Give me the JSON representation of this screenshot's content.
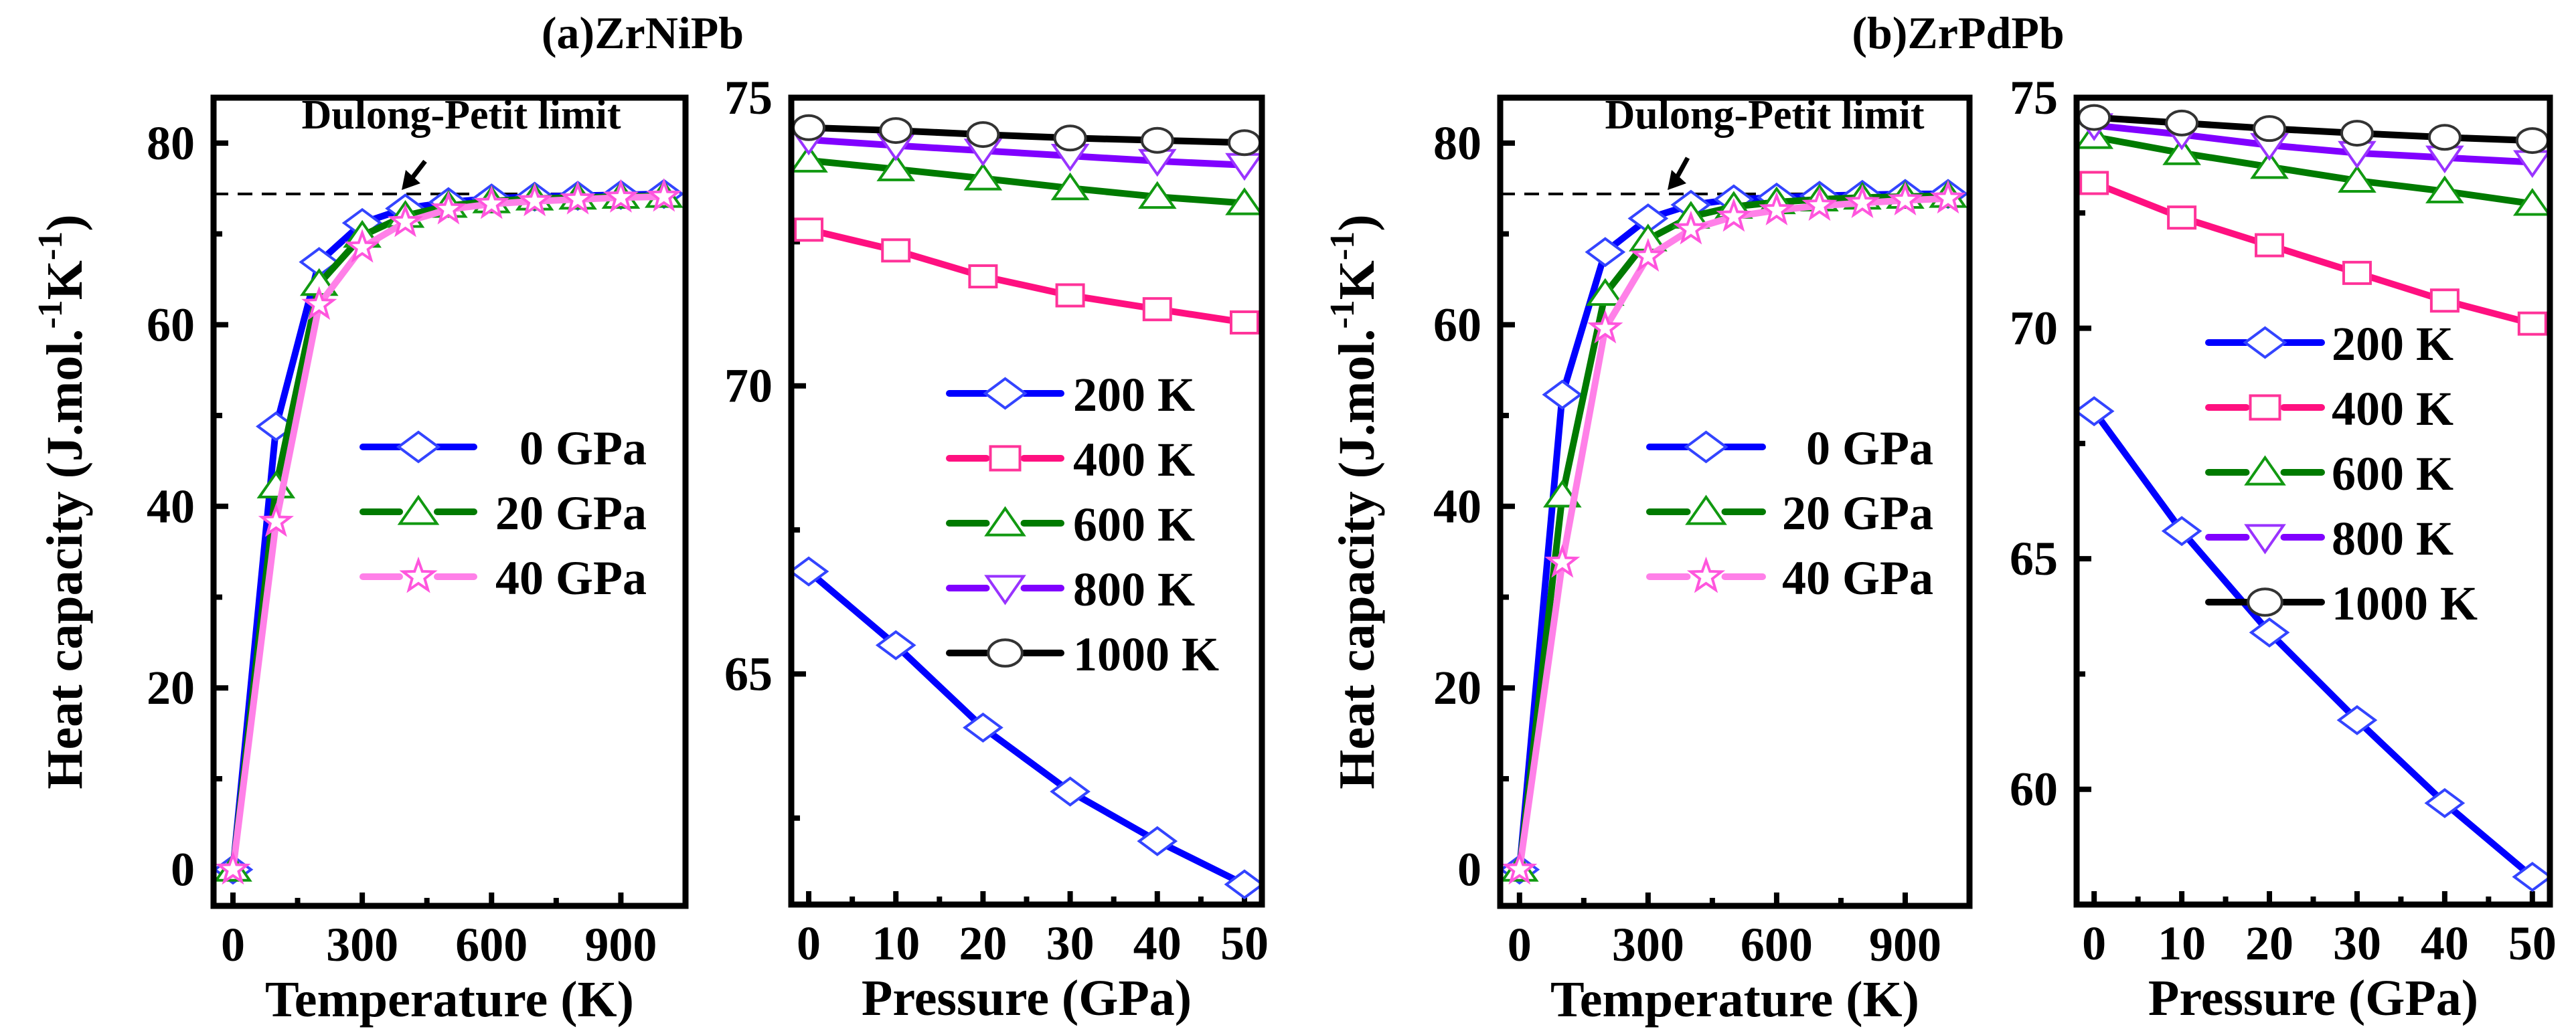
{
  "figure_titles": [
    "(a)ZrNiPb",
    "(b)ZrPdPb"
  ],
  "chart_data": [
    {
      "type": "line",
      "panel": "(a)ZrNiPb",
      "xlabel": "Temperature (K)",
      "ylabel": {
        "main": "Heat capacity (J.mol.",
        "sup1": "-1",
        "mid": "K",
        "sup2": "-1",
        "end": ")"
      },
      "xlim": [
        -45,
        1050
      ],
      "ylim": [
        -4,
        85
      ],
      "xticks": [
        0,
        300,
        600,
        900
      ],
      "xminor": 150,
      "yticks": [
        0,
        20,
        40,
        60,
        80
      ],
      "yminor": 10,
      "annotation": {
        "text": "Dulong-Petit limit",
        "value": 74.4
      },
      "x": [
        0,
        100,
        200,
        300,
        400,
        500,
        600,
        700,
        800,
        900,
        1000
      ],
      "series": [
        {
          "name": "0 GPa",
          "color": "#0000ff",
          "marker_color": "#3344ff",
          "marker": "diamond",
          "values": [
            0,
            48.8,
            66.9,
            71.2,
            72.8,
            73.5,
            73.9,
            74.1,
            74.2,
            74.3,
            74.4
          ]
        },
        {
          "name": "20 GPa",
          "color": "#007a00",
          "marker_color": "#119911",
          "marker": "triangle",
          "values": [
            0,
            42.2,
            64.5,
            69.8,
            72.0,
            73.1,
            73.6,
            73.9,
            74.0,
            74.1,
            74.2
          ]
        },
        {
          "name": "40 GPa",
          "color": "#ff80e8",
          "marker_color": "#ff55dd",
          "marker": "star",
          "values": [
            0,
            38.3,
            62.2,
            68.5,
            71.3,
            72.7,
            73.3,
            73.6,
            73.8,
            74.0,
            74.1
          ]
        }
      ]
    },
    {
      "type": "line",
      "panel": "(a)ZrNiPb",
      "xlabel": "Pressure (GPa)",
      "xlim": [
        -2,
        52
      ],
      "ylim": [
        61,
        75
      ],
      "xticks": [
        0,
        10,
        20,
        30,
        40,
        50
      ],
      "xminor": 5,
      "yticks": [
        65,
        70,
        75
      ],
      "yminor": 2.5,
      "x": [
        0,
        10,
        20,
        30,
        40,
        50
      ],
      "series": [
        {
          "name": "200 K",
          "color": "#0000ff",
          "marker_color": "#3344ff",
          "marker": "diamond",
          "values": [
            66.78,
            65.5,
            64.07,
            62.96,
            62.1,
            61.35
          ]
        },
        {
          "name": "400 K",
          "color": "#ff1080",
          "marker_color": "#ff3399",
          "marker": "square",
          "values": [
            72.71,
            72.35,
            71.9,
            71.57,
            71.33,
            71.1
          ]
        },
        {
          "name": "600 K",
          "color": "#007a00",
          "marker_color": "#119911",
          "marker": "triangle",
          "values": [
            73.91,
            73.76,
            73.6,
            73.43,
            73.28,
            73.17
          ]
        },
        {
          "name": "800 K",
          "color": "#8000ff",
          "marker_color": "#9933ff",
          "marker": "triangle-down",
          "values": [
            74.27,
            74.17,
            74.08,
            73.99,
            73.9,
            73.83
          ]
        },
        {
          "name": "1000 K",
          "color": "#000000",
          "marker_color": "#333333",
          "marker": "circle",
          "values": [
            74.48,
            74.43,
            74.36,
            74.3,
            74.26,
            74.22
          ]
        }
      ]
    },
    {
      "type": "line",
      "panel": "(b)ZrPdPb",
      "xlabel": "Temperature (K)",
      "ylabel": {
        "main": "Heat capacity (J.mol.",
        "sup1": "-1",
        "mid": "K",
        "sup2": "-1",
        "end": ")"
      },
      "xlim": [
        -45,
        1050
      ],
      "ylim": [
        -4,
        85
      ],
      "xticks": [
        0,
        300,
        600,
        900
      ],
      "xminor": 150,
      "yticks": [
        0,
        20,
        40,
        60,
        80
      ],
      "yminor": 10,
      "annotation": {
        "text": "Dulong-Petit limit",
        "value": 74.4
      },
      "x": [
        0,
        100,
        200,
        300,
        400,
        500,
        600,
        700,
        800,
        900,
        1000
      ],
      "series": [
        {
          "name": "0 GPa",
          "color": "#0000ff",
          "marker_color": "#3344ff",
          "marker": "diamond",
          "values": [
            0,
            52.3,
            68.0,
            71.7,
            73.2,
            73.8,
            74.0,
            74.2,
            74.3,
            74.4,
            74.4
          ]
        },
        {
          "name": "20 GPa",
          "color": "#007a00",
          "marker_color": "#119911",
          "marker": "triangle",
          "values": [
            0,
            41.2,
            63.4,
            69.4,
            71.9,
            73.0,
            73.5,
            73.8,
            74.0,
            74.1,
            74.2
          ]
        },
        {
          "name": "40 GPa",
          "color": "#ff80e8",
          "marker_color": "#ff55dd",
          "marker": "star",
          "values": [
            0,
            33.8,
            59.6,
            67.5,
            70.5,
            71.9,
            72.6,
            73.1,
            73.4,
            73.7,
            73.9
          ]
        }
      ]
    },
    {
      "type": "line",
      "panel": "(b)ZrPdPb",
      "xlabel": "Pressure (GPa)",
      "xlim": [
        -2,
        52
      ],
      "ylim": [
        57.5,
        75
      ],
      "xticks": [
        0,
        10,
        20,
        30,
        40,
        50
      ],
      "xminor": 5,
      "yticks": [
        60,
        65,
        70,
        75
      ],
      "yminor": 2.5,
      "x": [
        0,
        10,
        20,
        30,
        40,
        50
      ],
      "series": [
        {
          "name": "200 K",
          "color": "#0000ff",
          "marker_color": "#3344ff",
          "marker": "diamond",
          "values": [
            68.2,
            65.6,
            63.4,
            61.5,
            59.7,
            58.1
          ]
        },
        {
          "name": "400 K",
          "color": "#ff1080",
          "marker_color": "#ff3399",
          "marker": "square",
          "values": [
            73.15,
            72.4,
            71.8,
            71.2,
            70.6,
            70.1
          ]
        },
        {
          "name": "600 K",
          "color": "#007a00",
          "marker_color": "#119911",
          "marker": "triangle",
          "values": [
            74.15,
            73.8,
            73.5,
            73.2,
            72.97,
            72.7
          ]
        },
        {
          "name": "800 K",
          "color": "#8000ff",
          "marker_color": "#9933ff",
          "marker": "triangle-down",
          "values": [
            74.4,
            74.2,
            73.97,
            73.8,
            73.7,
            73.6
          ]
        },
        {
          "name": "1000 K",
          "color": "#000000",
          "marker_color": "#333333",
          "marker": "circle",
          "values": [
            74.57,
            74.45,
            74.33,
            74.23,
            74.14,
            74.07
          ]
        }
      ]
    }
  ]
}
